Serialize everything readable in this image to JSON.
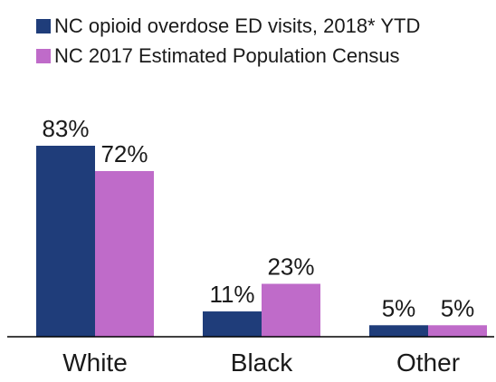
{
  "chart_data": {
    "type": "bar",
    "title": "",
    "xlabel": "",
    "ylabel": "",
    "categories": [
      "White",
      "Black",
      "Other"
    ],
    "series": [
      {
        "name": "NC opioid overdose ED visits, 2018* YTD",
        "color": "#1f3d7a",
        "values": [
          83,
          11,
          5
        ],
        "labels": [
          "83%",
          "11%",
          "5%"
        ]
      },
      {
        "name": "NC 2017 Estimated Population Census",
        "color": "#bf6bc9",
        "values": [
          72,
          23,
          5
        ],
        "labels": [
          "72%",
          "23%",
          "5%"
        ]
      }
    ],
    "ylim": [
      0,
      83
    ],
    "unit": "%",
    "grid": false,
    "legend_position": "top"
  }
}
